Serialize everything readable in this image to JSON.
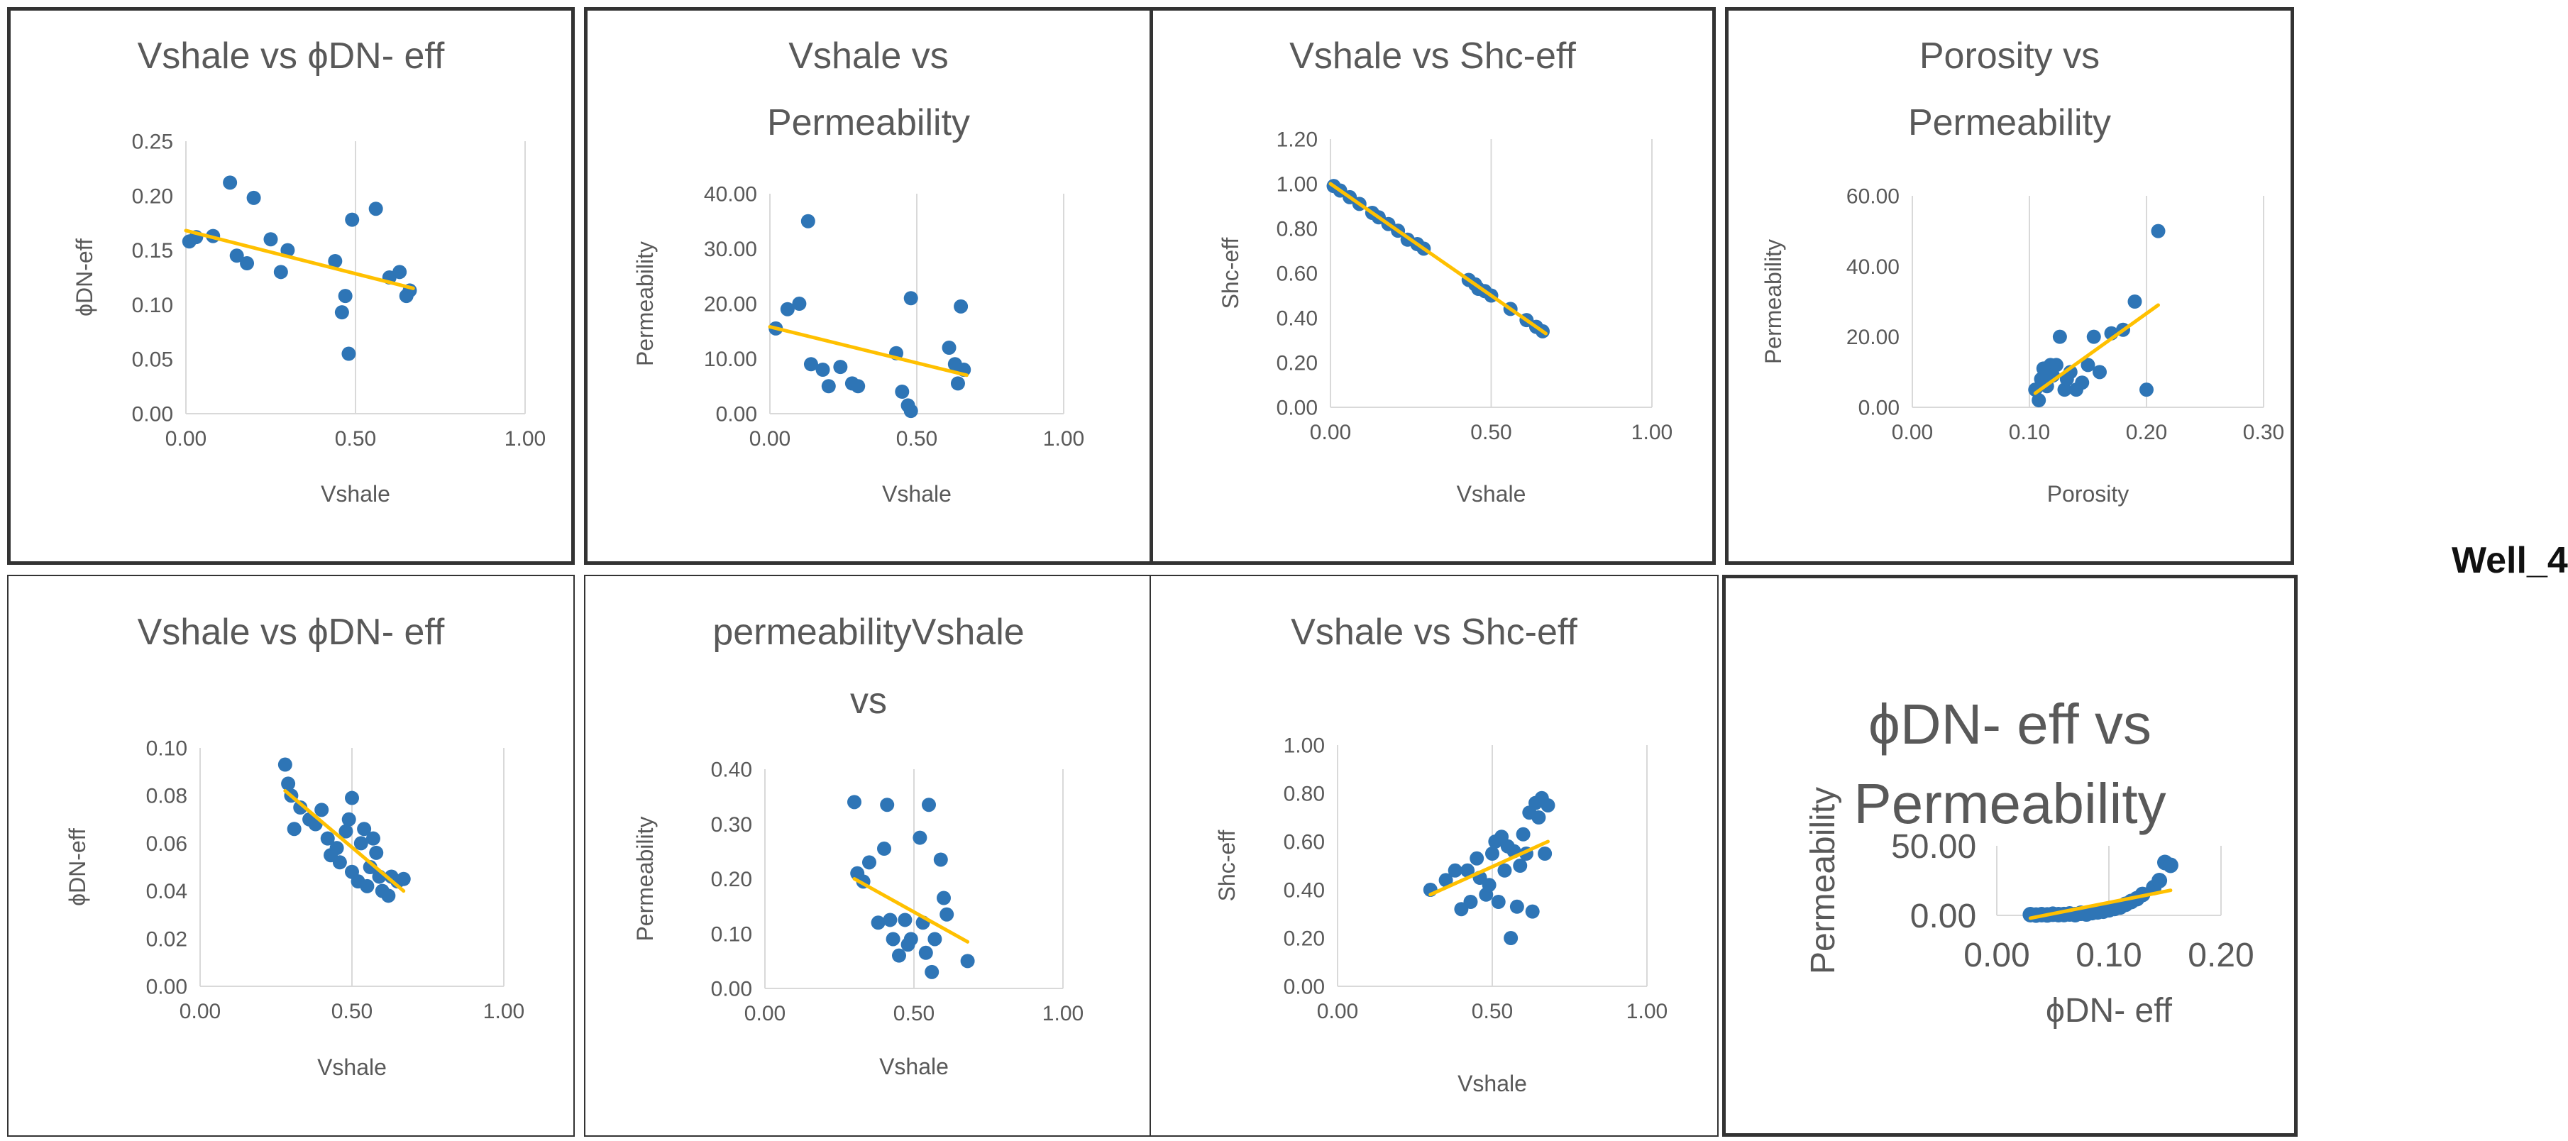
{
  "well_label": "Well_4",
  "colors": {
    "points": "#2e75b6",
    "trendline": "#ffc000",
    "gridlines": "#d9d9d9",
    "text": "#595959",
    "frame": "#333333"
  },
  "chart_data": [
    {
      "id": "c1",
      "type": "scatter",
      "title": [
        "Vshale vs ϕDN- eff"
      ],
      "xlabel": "Vshale",
      "ylabel": "ϕDN-eff",
      "xlim": [
        0,
        1
      ],
      "ylim": [
        0,
        0.25
      ],
      "xticks": [
        "0.00",
        "0.50",
        "1.00"
      ],
      "yticks": [
        "0.00",
        "0.05",
        "0.10",
        "0.15",
        "0.20",
        "0.25"
      ],
      "grid": "vertical-major",
      "points": [
        [
          0.01,
          0.158
        ],
        [
          0.03,
          0.162
        ],
        [
          0.08,
          0.163
        ],
        [
          0.13,
          0.212
        ],
        [
          0.15,
          0.145
        ],
        [
          0.18,
          0.138
        ],
        [
          0.2,
          0.198
        ],
        [
          0.25,
          0.16
        ],
        [
          0.28,
          0.13
        ],
        [
          0.3,
          0.15
        ],
        [
          0.44,
          0.14
        ],
        [
          0.46,
          0.093
        ],
        [
          0.47,
          0.108
        ],
        [
          0.48,
          0.055
        ],
        [
          0.49,
          0.178
        ],
        [
          0.56,
          0.188
        ],
        [
          0.6,
          0.125
        ],
        [
          0.63,
          0.13
        ],
        [
          0.65,
          0.108
        ],
        [
          0.66,
          0.113
        ]
      ],
      "trendline": [
        [
          0,
          0.168
        ],
        [
          0.67,
          0.115
        ]
      ]
    },
    {
      "id": "c2",
      "type": "scatter",
      "title": [
        "Vshale vs",
        "Permeability"
      ],
      "xlabel": "Vshale",
      "ylabel": "Permeability",
      "xlim": [
        0,
        1
      ],
      "ylim": [
        0,
        40
      ],
      "xticks": [
        "0.00",
        "0.50",
        "1.00"
      ],
      "yticks": [
        "0.00",
        "10.00",
        "20.00",
        "30.00",
        "40.00"
      ],
      "grid": "vertical-major",
      "points": [
        [
          0.02,
          15.5
        ],
        [
          0.06,
          19
        ],
        [
          0.1,
          20
        ],
        [
          0.13,
          35
        ],
        [
          0.14,
          9
        ],
        [
          0.18,
          8
        ],
        [
          0.2,
          5
        ],
        [
          0.24,
          8.5
        ],
        [
          0.28,
          5.5
        ],
        [
          0.3,
          5
        ],
        [
          0.43,
          11
        ],
        [
          0.45,
          4
        ],
        [
          0.47,
          1.5
        ],
        [
          0.48,
          0.5
        ],
        [
          0.48,
          21
        ],
        [
          0.61,
          12
        ],
        [
          0.63,
          9
        ],
        [
          0.64,
          5.5
        ],
        [
          0.65,
          19.5
        ],
        [
          0.66,
          8
        ]
      ],
      "trendline": [
        [
          0,
          15.8
        ],
        [
          0.67,
          7
        ]
      ]
    },
    {
      "id": "c3",
      "type": "scatter",
      "title": [
        "Vshale vs Shc-eff"
      ],
      "xlabel": "Vshale",
      "ylabel": "Shc-eff",
      "xlim": [
        0,
        1
      ],
      "ylim": [
        0,
        1.2
      ],
      "xticks": [
        "0.00",
        "0.50",
        "1.00"
      ],
      "yticks": [
        "0.00",
        "0.20",
        "0.40",
        "0.60",
        "0.80",
        "1.00",
        "1.20"
      ],
      "grid": "vertical-major",
      "points": [
        [
          0.01,
          0.99
        ],
        [
          0.03,
          0.97
        ],
        [
          0.06,
          0.94
        ],
        [
          0.09,
          0.91
        ],
        [
          0.13,
          0.87
        ],
        [
          0.15,
          0.85
        ],
        [
          0.18,
          0.82
        ],
        [
          0.21,
          0.79
        ],
        [
          0.24,
          0.75
        ],
        [
          0.27,
          0.73
        ],
        [
          0.29,
          0.71
        ],
        [
          0.43,
          0.57
        ],
        [
          0.45,
          0.55
        ],
        [
          0.46,
          0.53
        ],
        [
          0.48,
          0.52
        ],
        [
          0.5,
          0.5
        ],
        [
          0.56,
          0.44
        ],
        [
          0.61,
          0.39
        ],
        [
          0.64,
          0.36
        ],
        [
          0.66,
          0.34
        ]
      ],
      "trendline": [
        [
          0,
          1.0
        ],
        [
          0.67,
          0.33
        ]
      ]
    },
    {
      "id": "c4",
      "type": "scatter",
      "title": [
        "Porosity vs",
        "Permeability"
      ],
      "xlabel": "Porosity",
      "ylabel": "Permeability",
      "xlim": [
        0,
        0.3
      ],
      "ylim": [
        0,
        60
      ],
      "xticks": [
        "0.00",
        "0.10",
        "0.20",
        "0.30"
      ],
      "yticks": [
        "0.00",
        "20.00",
        "40.00",
        "60.00"
      ],
      "grid": "vertical-major",
      "points": [
        [
          0.105,
          5
        ],
        [
          0.108,
          2
        ],
        [
          0.11,
          8
        ],
        [
          0.112,
          11
        ],
        [
          0.115,
          6
        ],
        [
          0.118,
          12
        ],
        [
          0.12,
          9
        ],
        [
          0.123,
          12
        ],
        [
          0.126,
          20
        ],
        [
          0.13,
          5
        ],
        [
          0.132,
          8
        ],
        [
          0.135,
          10
        ],
        [
          0.14,
          5
        ],
        [
          0.145,
          7
        ],
        [
          0.15,
          12
        ],
        [
          0.155,
          20
        ],
        [
          0.16,
          10
        ],
        [
          0.17,
          21
        ],
        [
          0.18,
          22
        ],
        [
          0.19,
          30
        ],
        [
          0.2,
          5
        ],
        [
          0.21,
          50
        ]
      ],
      "trendline": [
        [
          0.105,
          4
        ],
        [
          0.21,
          29
        ]
      ]
    },
    {
      "id": "c5",
      "type": "scatter",
      "title": [
        "Vshale vs ϕDN- eff"
      ],
      "xlabel": "Vshale",
      "ylabel": "ϕDN-eff",
      "xlim": [
        0,
        1
      ],
      "ylim": [
        0,
        0.1
      ],
      "xticks": [
        "0.00",
        "0.50",
        "1.00"
      ],
      "yticks": [
        "0.00",
        "0.02",
        "0.04",
        "0.06",
        "0.08",
        "0.10"
      ],
      "grid": "vertical-major",
      "points": [
        [
          0.28,
          0.093
        ],
        [
          0.29,
          0.085
        ],
        [
          0.3,
          0.08
        ],
        [
          0.31,
          0.066
        ],
        [
          0.33,
          0.075
        ],
        [
          0.36,
          0.07
        ],
        [
          0.38,
          0.068
        ],
        [
          0.4,
          0.074
        ],
        [
          0.42,
          0.062
        ],
        [
          0.43,
          0.055
        ],
        [
          0.45,
          0.058
        ],
        [
          0.46,
          0.052
        ],
        [
          0.48,
          0.065
        ],
        [
          0.49,
          0.07
        ],
        [
          0.5,
          0.079
        ],
        [
          0.5,
          0.048
        ],
        [
          0.52,
          0.044
        ],
        [
          0.53,
          0.06
        ],
        [
          0.54,
          0.066
        ],
        [
          0.55,
          0.042
        ],
        [
          0.56,
          0.05
        ],
        [
          0.57,
          0.062
        ],
        [
          0.58,
          0.056
        ],
        [
          0.59,
          0.046
        ],
        [
          0.6,
          0.04
        ],
        [
          0.62,
          0.038
        ],
        [
          0.63,
          0.046
        ],
        [
          0.65,
          0.044
        ],
        [
          0.67,
          0.045
        ]
      ],
      "trendline": [
        [
          0.28,
          0.082
        ],
        [
          0.67,
          0.04
        ]
      ]
    },
    {
      "id": "c6",
      "type": "scatter",
      "title": [
        "permeabilityVshale",
        "vs"
      ],
      "xlabel": "Vshale",
      "ylabel": "Permeability",
      "xlim": [
        0,
        1
      ],
      "ylim": [
        0,
        0.4
      ],
      "xticks": [
        "0.00",
        "0.50",
        "1.00"
      ],
      "yticks": [
        "0.00",
        "0.10",
        "0.20",
        "0.30",
        "0.40"
      ],
      "grid": "vertical-major",
      "points": [
        [
          0.3,
          0.34
        ],
        [
          0.31,
          0.21
        ],
        [
          0.33,
          0.195
        ],
        [
          0.35,
          0.23
        ],
        [
          0.38,
          0.12
        ],
        [
          0.4,
          0.255
        ],
        [
          0.41,
          0.335
        ],
        [
          0.42,
          0.125
        ],
        [
          0.43,
          0.09
        ],
        [
          0.45,
          0.06
        ],
        [
          0.47,
          0.125
        ],
        [
          0.48,
          0.08
        ],
        [
          0.49,
          0.09
        ],
        [
          0.52,
          0.275
        ],
        [
          0.53,
          0.12
        ],
        [
          0.54,
          0.065
        ],
        [
          0.55,
          0.335
        ],
        [
          0.56,
          0.03
        ],
        [
          0.57,
          0.09
        ],
        [
          0.59,
          0.235
        ],
        [
          0.6,
          0.165
        ],
        [
          0.61,
          0.135
        ],
        [
          0.68,
          0.05
        ]
      ],
      "trendline": [
        [
          0.3,
          0.2
        ],
        [
          0.68,
          0.085
        ]
      ]
    },
    {
      "id": "c7",
      "type": "scatter",
      "title": [
        "Vshale vs Shc-eff"
      ],
      "xlabel": "Vshale",
      "ylabel": "Shc-eff",
      "xlim": [
        0,
        1
      ],
      "ylim": [
        0,
        1
      ],
      "xticks": [
        "0.00",
        "0.50",
        "1.00"
      ],
      "yticks": [
        "0.00",
        "0.20",
        "0.40",
        "0.60",
        "0.80",
        "1.00"
      ],
      "grid": "vertical-major",
      "points": [
        [
          0.3,
          0.4
        ],
        [
          0.35,
          0.44
        ],
        [
          0.38,
          0.48
        ],
        [
          0.4,
          0.32
        ],
        [
          0.42,
          0.48
        ],
        [
          0.43,
          0.35
        ],
        [
          0.45,
          0.53
        ],
        [
          0.46,
          0.45
        ],
        [
          0.48,
          0.38
        ],
        [
          0.49,
          0.42
        ],
        [
          0.5,
          0.55
        ],
        [
          0.51,
          0.6
        ],
        [
          0.52,
          0.35
        ],
        [
          0.53,
          0.62
        ],
        [
          0.54,
          0.48
        ],
        [
          0.55,
          0.58
        ],
        [
          0.56,
          0.2
        ],
        [
          0.57,
          0.56
        ],
        [
          0.58,
          0.33
        ],
        [
          0.59,
          0.5
        ],
        [
          0.6,
          0.63
        ],
        [
          0.61,
          0.55
        ],
        [
          0.62,
          0.72
        ],
        [
          0.63,
          0.31
        ],
        [
          0.64,
          0.76
        ],
        [
          0.65,
          0.7
        ],
        [
          0.66,
          0.78
        ],
        [
          0.67,
          0.55
        ],
        [
          0.68,
          0.75
        ]
      ],
      "trendline": [
        [
          0.3,
          0.38
        ],
        [
          0.68,
          0.6
        ]
      ]
    },
    {
      "id": "c8",
      "type": "scatter",
      "title": [
        "ϕDN- eff vs",
        "Permeability"
      ],
      "xlabel": "ϕDN- eff",
      "ylabel": "Permeability",
      "xlim": [
        0,
        0.2
      ],
      "ylim": [
        0,
        50
      ],
      "xticks": [
        "0.00",
        "0.10",
        "0.20"
      ],
      "yticks": [
        "0.00",
        "50.00"
      ],
      "grid": "vertical-major",
      "points": [
        [
          0.03,
          0.5
        ],
        [
          0.035,
          0.2
        ],
        [
          0.04,
          0.5
        ],
        [
          0.045,
          0.3
        ],
        [
          0.05,
          0.8
        ],
        [
          0.055,
          0.5
        ],
        [
          0.06,
          0.6
        ],
        [
          0.065,
          1
        ],
        [
          0.07,
          0.5
        ],
        [
          0.075,
          1.5
        ],
        [
          0.08,
          1
        ],
        [
          0.085,
          2
        ],
        [
          0.09,
          2.5
        ],
        [
          0.095,
          3
        ],
        [
          0.1,
          4
        ],
        [
          0.105,
          5
        ],
        [
          0.11,
          6
        ],
        [
          0.115,
          8
        ],
        [
          0.12,
          10
        ],
        [
          0.125,
          12
        ],
        [
          0.13,
          15
        ],
        [
          0.14,
          20
        ],
        [
          0.145,
          25
        ],
        [
          0.15,
          38
        ],
        [
          0.155,
          36
        ]
      ],
      "trendline": [
        [
          0.03,
          -2
        ],
        [
          0.155,
          18
        ]
      ]
    }
  ]
}
